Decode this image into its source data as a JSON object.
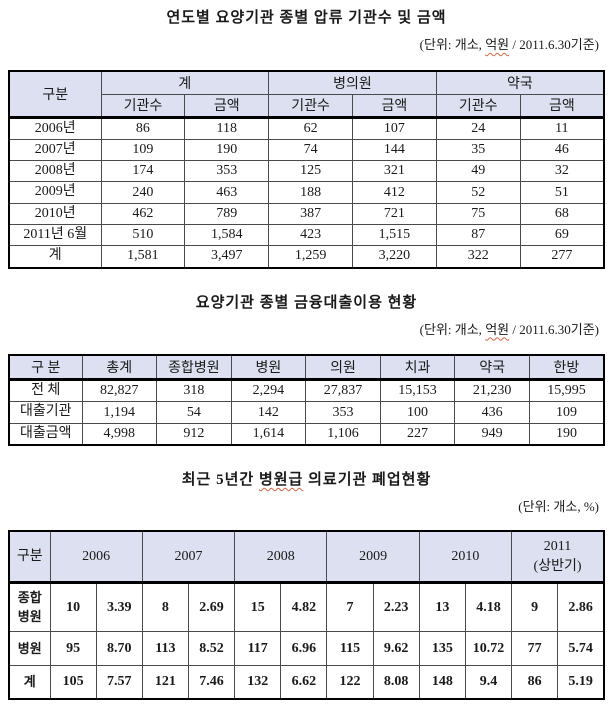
{
  "colors": {
    "header_bg": "#dce0f0",
    "outer_border": "#000000",
    "inner_border": "#4a4a4a",
    "spellcheck_underline": "#cc6644"
  },
  "section1": {
    "title": "연도별 요양기관 종별 압류 기관수 및 금액",
    "unit_prefix": "(단위: 개소, ",
    "unit_highlight": "억원",
    "unit_suffix": " / 2011.6.30기준)",
    "table": {
      "corner": "구분",
      "groups": [
        {
          "label": "계",
          "colspan": 2
        },
        {
          "label": "병의원",
          "colspan": 2
        },
        {
          "label": "약국",
          "colspan": 2
        }
      ],
      "subheaders": [
        "기관수",
        "금액",
        "기관수",
        "금액",
        "기관수",
        "금액"
      ],
      "rows": [
        {
          "label": "2006년",
          "values": [
            "86",
            "118",
            "62",
            "107",
            "24",
            "11"
          ]
        },
        {
          "label": "2007년",
          "values": [
            "109",
            "190",
            "74",
            "144",
            "35",
            "46"
          ]
        },
        {
          "label": "2008년",
          "values": [
            "174",
            "353",
            "125",
            "321",
            "49",
            "32"
          ]
        },
        {
          "label": "2009년",
          "values": [
            "240",
            "463",
            "188",
            "412",
            "52",
            "51"
          ]
        },
        {
          "label": "2010년",
          "values": [
            "462",
            "789",
            "387",
            "721",
            "75",
            "68"
          ]
        },
        {
          "label": "2011년 6월",
          "values": [
            "510",
            "1,584",
            "423",
            "1,515",
            "87",
            "69"
          ]
        },
        {
          "label": "계",
          "values": [
            "1,581",
            "3,497",
            "1,259",
            "3,220",
            "322",
            "277"
          ]
        }
      ]
    }
  },
  "section2": {
    "title": "요양기관 종별 금융대출이용 현황",
    "unit_prefix": "(단위: 개소, ",
    "unit_highlight": "억원",
    "unit_suffix": " / 2011.6.30기준)",
    "table": {
      "headers": [
        "구 분",
        "총계",
        "종합병원",
        "병원",
        "의원",
        "치과",
        "약국",
        "한방"
      ],
      "rows": [
        {
          "label": "전 체",
          "values": [
            "82,827",
            "318",
            "2,294",
            "27,837",
            "15,153",
            "21,230",
            "15,995"
          ]
        },
        {
          "label": "대출기관",
          "values": [
            "1,194",
            "54",
            "142",
            "353",
            "100",
            "436",
            "109"
          ]
        },
        {
          "label": "대출금액",
          "values": [
            "4,998",
            "912",
            "1,614",
            "1,106",
            "227",
            "949",
            "190"
          ]
        }
      ]
    }
  },
  "section3": {
    "title_prefix": "최근 5년간 ",
    "title_highlight": "병원급",
    "title_suffix": " 의료기관 폐업현황",
    "unit": "(단위: 개소, %)",
    "table": {
      "corner": "구분",
      "groups": [
        {
          "lines": [
            "2006"
          ],
          "colspan": 2
        },
        {
          "lines": [
            "2007"
          ],
          "colspan": 2
        },
        {
          "lines": [
            "2008"
          ],
          "colspan": 2
        },
        {
          "lines": [
            "2009"
          ],
          "colspan": 2
        },
        {
          "lines": [
            "2010"
          ],
          "colspan": 2
        },
        {
          "lines": [
            "2011",
            "(상반기)"
          ],
          "colspan": 2
        }
      ],
      "rows": [
        {
          "label": "종합\n병원",
          "values": [
            "10",
            "3.39",
            "8",
            "2.69",
            "15",
            "4.82",
            "7",
            "2.23",
            "13",
            "4.18",
            "9",
            "2.86"
          ]
        },
        {
          "label": "병원",
          "values": [
            "95",
            "8.70",
            "113",
            "8.52",
            "117",
            "6.96",
            "115",
            "9.62",
            "135",
            "10.72",
            "77",
            "5.74"
          ]
        },
        {
          "label": "계",
          "values": [
            "105",
            "7.57",
            "121",
            "7.46",
            "132",
            "6.62",
            "122",
            "8.08",
            "148",
            "9.4",
            "86",
            "5.19"
          ]
        }
      ]
    }
  }
}
